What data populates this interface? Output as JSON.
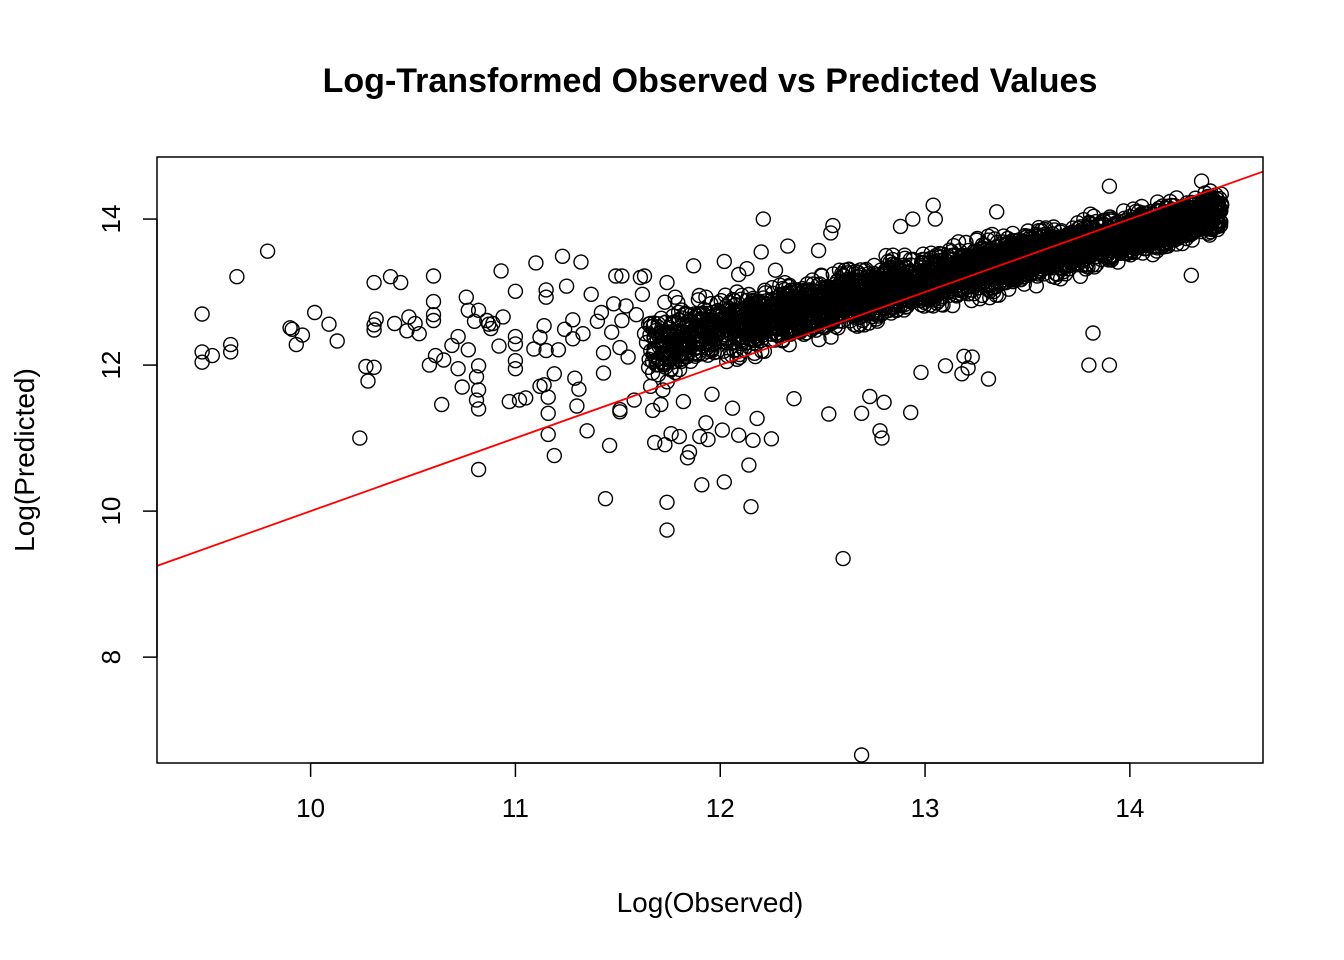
{
  "chart_data": {
    "type": "scatter",
    "title": "Log-Transformed Observed vs Predicted Values",
    "xlabel": "Log(Observed)",
    "ylabel": "Log(Predicted)",
    "xlim": [
      9.25,
      14.65
    ],
    "ylim": [
      6.55,
      14.85
    ],
    "x_ticks": [
      10,
      11,
      12,
      13,
      14
    ],
    "y_ticks": [
      8,
      10,
      12,
      14
    ],
    "grid": false,
    "legend": "none",
    "point_color": "#000000",
    "reference_line": {
      "type": "identity",
      "slope": 1,
      "intercept": 0,
      "color": "#ff0000"
    },
    "series": [
      {
        "points": [
          [
            9.47,
            12.7
          ],
          [
            9.47,
            12.18
          ],
          [
            9.47,
            12.04
          ],
          [
            9.52,
            12.13
          ],
          [
            9.61,
            12.28
          ],
          [
            9.61,
            12.18
          ],
          [
            9.64,
            13.21
          ],
          [
            9.79,
            13.56
          ],
          [
            9.9,
            12.51
          ],
          [
            9.91,
            12.49
          ],
          [
            9.93,
            12.28
          ],
          [
            9.96,
            12.41
          ],
          [
            10.02,
            12.72
          ],
          [
            10.09,
            12.56
          ],
          [
            10.13,
            12.33
          ],
          [
            10.24,
            11.0
          ],
          [
            10.27,
            11.98
          ],
          [
            10.28,
            11.78
          ],
          [
            10.31,
            11.97
          ],
          [
            10.31,
            12.55
          ],
          [
            10.31,
            13.13
          ],
          [
            10.31,
            12.48
          ],
          [
            10.32,
            12.63
          ],
          [
            10.39,
            13.21
          ],
          [
            10.41,
            12.57
          ],
          [
            10.44,
            13.13
          ],
          [
            10.47,
            12.47
          ],
          [
            10.48,
            12.66
          ],
          [
            10.51,
            12.57
          ],
          [
            10.53,
            12.43
          ],
          [
            10.58,
            12.0
          ],
          [
            10.6,
            12.61
          ],
          [
            10.6,
            12.69
          ],
          [
            10.6,
            12.87
          ],
          [
            10.6,
            13.22
          ],
          [
            10.61,
            12.13
          ],
          [
            10.64,
            11.46
          ],
          [
            10.65,
            12.07
          ],
          [
            10.69,
            12.27
          ],
          [
            10.72,
            12.39
          ],
          [
            10.72,
            11.95
          ],
          [
            10.74,
            11.7
          ],
          [
            10.76,
            12.93
          ],
          [
            10.77,
            12.75
          ],
          [
            10.77,
            12.21
          ],
          [
            10.8,
            12.6
          ],
          [
            10.82,
            11.99
          ],
          [
            10.82,
            12.75
          ],
          [
            10.81,
            11.84
          ],
          [
            10.82,
            11.66
          ],
          [
            10.81,
            11.52
          ],
          [
            10.82,
            11.4
          ],
          [
            10.82,
            10.57
          ],
          [
            10.86,
            12.61
          ],
          [
            10.87,
            12.56
          ],
          [
            10.88,
            12.5
          ],
          [
            10.89,
            12.57
          ],
          [
            10.92,
            12.26
          ],
          [
            10.93,
            13.29
          ],
          [
            10.94,
            12.66
          ],
          [
            10.97,
            11.5
          ],
          [
            11.0,
            12.29
          ],
          [
            11.0,
            12.39
          ],
          [
            11.0,
            12.06
          ],
          [
            11.0,
            11.95
          ],
          [
            11.0,
            13.01
          ],
          [
            11.02,
            11.52
          ],
          [
            11.05,
            11.55
          ],
          [
            11.09,
            12.22
          ],
          [
            11.1,
            13.4
          ],
          [
            11.12,
            11.71
          ],
          [
            11.12,
            12.38
          ],
          [
            11.14,
            12.54
          ],
          [
            11.14,
            11.73
          ],
          [
            11.15,
            12.2
          ],
          [
            11.15,
            12.93
          ],
          [
            11.15,
            13.03
          ],
          [
            11.16,
            11.05
          ],
          [
            11.16,
            11.34
          ],
          [
            11.16,
            11.56
          ],
          [
            11.19,
            10.76
          ],
          [
            11.19,
            11.88
          ],
          [
            11.21,
            12.21
          ],
          [
            11.23,
            13.49
          ],
          [
            11.24,
            12.49
          ],
          [
            11.25,
            13.08
          ],
          [
            11.28,
            12.62
          ],
          [
            11.28,
            12.36
          ],
          [
            11.29,
            11.82
          ],
          [
            11.3,
            11.44
          ],
          [
            11.31,
            11.67
          ],
          [
            11.32,
            13.41
          ],
          [
            11.33,
            12.43
          ],
          [
            11.35,
            11.1
          ],
          [
            11.37,
            12.97
          ],
          [
            11.4,
            12.6
          ],
          [
            11.42,
            12.72
          ],
          [
            11.43,
            11.89
          ],
          [
            11.43,
            12.17
          ],
          [
            11.44,
            10.17
          ],
          [
            11.46,
            10.9
          ],
          [
            11.47,
            12.45
          ],
          [
            11.48,
            12.84
          ],
          [
            11.49,
            13.22
          ],
          [
            11.51,
            11.39
          ],
          [
            11.51,
            11.36
          ],
          [
            11.51,
            12.24
          ],
          [
            11.52,
            12.61
          ],
          [
            11.52,
            13.22
          ],
          [
            11.54,
            12.81
          ],
          [
            11.55,
            12.11
          ],
          [
            11.58,
            11.52
          ],
          [
            11.59,
            12.69
          ],
          [
            11.61,
            13.2
          ],
          [
            11.62,
            12.97
          ],
          [
            11.63,
            13.22
          ],
          [
            11.63,
            12.43
          ],
          [
            11.64,
            12.31
          ],
          [
            11.65,
            12.56
          ],
          [
            11.65,
            11.97
          ],
          [
            11.66,
            11.71
          ],
          [
            11.67,
            11.38
          ],
          [
            11.68,
            10.94
          ],
          [
            11.71,
            11.46
          ],
          [
            11.72,
            11.66
          ],
          [
            11.73,
            10.91
          ],
          [
            11.74,
            10.12
          ],
          [
            11.74,
            9.74
          ],
          [
            11.74,
            13.13
          ],
          [
            11.76,
            11.06
          ],
          [
            11.78,
            12.93
          ],
          [
            11.8,
            11.02
          ],
          [
            11.82,
            11.5
          ],
          [
            11.84,
            10.73
          ],
          [
            11.85,
            10.81
          ],
          [
            11.87,
            13.36
          ],
          [
            11.9,
            11.02
          ],
          [
            11.91,
            10.36
          ],
          [
            11.93,
            12.93
          ],
          [
            11.93,
            11.21
          ],
          [
            11.94,
            10.98
          ],
          [
            11.96,
            11.6
          ],
          [
            12.01,
            11.11
          ],
          [
            12.02,
            10.4
          ],
          [
            12.02,
            13.42
          ],
          [
            12.06,
            11.41
          ],
          [
            12.07,
            12.88
          ],
          [
            12.09,
            11.04
          ],
          [
            12.09,
            13.24
          ],
          [
            12.13,
            13.32
          ],
          [
            12.14,
            10.63
          ],
          [
            12.15,
            10.06
          ],
          [
            12.16,
            10.97
          ],
          [
            12.18,
            11.27
          ],
          [
            12.2,
            13.55
          ],
          [
            12.21,
            14.0
          ],
          [
            12.25,
            10.99
          ],
          [
            12.27,
            13.3
          ],
          [
            12.33,
            13.63
          ],
          [
            12.36,
            11.54
          ],
          [
            12.48,
            13.57
          ],
          [
            12.53,
            11.33
          ],
          [
            12.54,
            13.81
          ],
          [
            12.55,
            13.91
          ],
          [
            12.6,
            9.35
          ],
          [
            12.69,
            6.66
          ],
          [
            12.69,
            11.34
          ],
          [
            12.73,
            11.57
          ],
          [
            12.78,
            11.1
          ],
          [
            12.79,
            11.0
          ],
          [
            12.79,
            13.0
          ],
          [
            12.8,
            11.49
          ],
          [
            12.81,
            13.5
          ],
          [
            12.88,
            13.9
          ],
          [
            12.93,
            11.35
          ],
          [
            12.94,
            14.0
          ],
          [
            12.98,
            11.9
          ],
          [
            13.04,
            14.19
          ],
          [
            13.05,
            14.0
          ],
          [
            13.1,
            11.99
          ],
          [
            13.18,
            11.88
          ],
          [
            13.19,
            12.12
          ],
          [
            13.21,
            11.96
          ],
          [
            13.23,
            12.11
          ],
          [
            13.31,
            11.81
          ],
          [
            13.35,
            14.1
          ],
          [
            13.82,
            12.44
          ],
          [
            13.8,
            12.0
          ],
          [
            13.9,
            12.0
          ],
          [
            13.9,
            14.45
          ],
          [
            14.3,
            13.23
          ],
          [
            14.35,
            14.52
          ],
          [
            12.3,
            12.4
          ],
          [
            12.5,
            12.6
          ],
          [
            12.7,
            12.8
          ],
          [
            12.9,
            13.0
          ],
          [
            13.1,
            13.2
          ],
          [
            13.3,
            13.4
          ],
          [
            13.5,
            13.6
          ],
          [
            13.7,
            13.8
          ],
          [
            13.9,
            14.0
          ],
          [
            14.1,
            14.1
          ],
          [
            14.3,
            14.2
          ],
          [
            14.4,
            14.3
          ]
        ],
        "dense_band": {
          "x_from": 11.65,
          "x_to": 14.45,
          "center_at_x_from": 12.25,
          "center_at_x_to": 14.1,
          "half_width_at_x_from": 0.5,
          "half_width_at_x_to": 0.3
        }
      }
    ]
  }
}
